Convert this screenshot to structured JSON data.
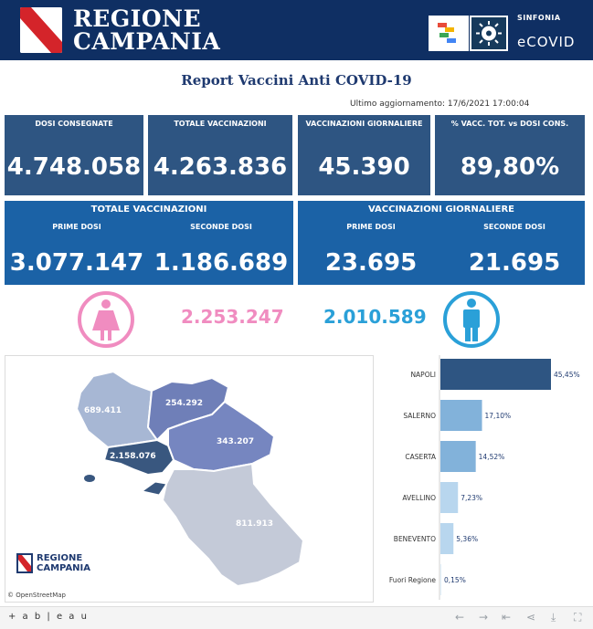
{
  "header": {
    "region_line1": "REGIONE",
    "region_line2": "CAMPANIA",
    "sinfonia_small": "SINFONIA",
    "sinfonia_big": "eCOVID",
    "colors": {
      "bar": "#0f2f63"
    }
  },
  "report": {
    "title": "Report Vaccini Anti COVID-19",
    "updated": "Ultimo aggiornamento: 17/6/2021 17:00:04"
  },
  "kpis": [
    {
      "label": "DOSI  CONSEGNATE",
      "value": "4.748.058"
    },
    {
      "label": "TOTALE VACCINAZIONI",
      "value": "4.263.836"
    },
    {
      "label": "VACCINAZIONI GIORNALIERE",
      "value": "45.390"
    },
    {
      "label": "% VACC. TOT. vs DOSI CONS.",
      "value": "89,80%"
    }
  ],
  "totale_vaccinazioni": {
    "title": "TOTALE VACCINAZIONI",
    "prime_label": "PRIME DOSI",
    "prime_value": "3.077.147",
    "seconde_label": "SECONDE DOSI",
    "seconde_value": "1.186.689"
  },
  "vaccinazioni_giornaliere": {
    "title": "VACCINAZIONI GIORNALIERE",
    "prime_label": "PRIME DOSI",
    "prime_value": "23.695",
    "seconde_label": "SECONDE DOSI",
    "seconde_value": "21.695"
  },
  "gender": {
    "female_value": "2.253.247",
    "male_value": "2.010.589",
    "female_icon": "female-icon",
    "male_icon": "male-icon",
    "female_color": "#f08cc0",
    "male_color": "#2aa0d8"
  },
  "map": {
    "labels": [
      "689.411",
      "254.292",
      "343.207",
      "2.158.076",
      "811.913"
    ],
    "logo_line1": "REGIONE",
    "logo_line2": "CAMPANIA",
    "attribution": "© OpenStreetMap"
  },
  "chart_data": {
    "type": "bar",
    "orientation": "horizontal",
    "categories": [
      "NAPOLI",
      "SALERNO",
      "CASERTA",
      "AVELLINO",
      "BENEVENTO",
      "Fuori Regione"
    ],
    "values": [
      45.45,
      17.1,
      14.52,
      7.23,
      5.36,
      0.15
    ],
    "value_labels": [
      "45,45%",
      "17,10%",
      "14,52%",
      "7,23%",
      "5,36%",
      "0,15%"
    ],
    "colors": [
      "#2e5582",
      "#82b2da",
      "#82b2da",
      "#b8d6ee",
      "#b8d6ee",
      "#dfeef9"
    ],
    "xlim": [
      0,
      45.45
    ]
  },
  "footer": {
    "brand": "+ a b | e a u",
    "icons": [
      "back-icon",
      "forward-icon",
      "revert-icon",
      "share-icon",
      "download-icon",
      "fullscreen-icon"
    ]
  }
}
